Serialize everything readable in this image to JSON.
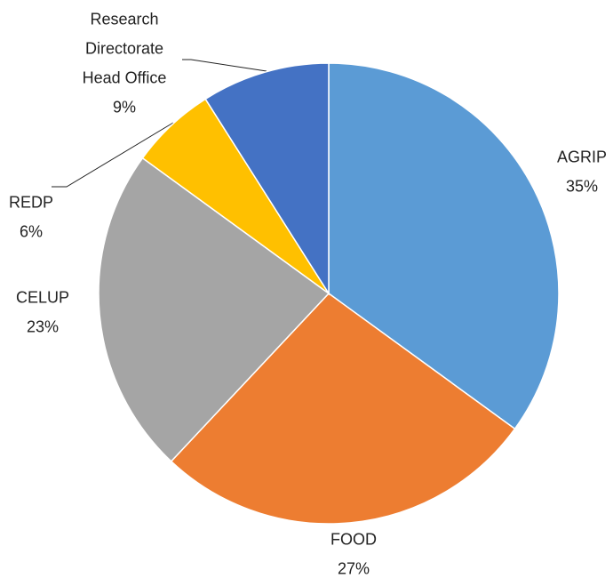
{
  "chart_data": {
    "type": "pie",
    "categories": [
      "AGRIP",
      "FOOD",
      "CELUP",
      "REDP",
      "Research Directorate Head Office"
    ],
    "values": [
      35,
      27,
      23,
      6,
      9
    ],
    "value_labels": [
      "35%",
      "27%",
      "23%",
      "6%",
      "9%"
    ],
    "colors": [
      "#5b9bd5",
      "#ed7d31",
      "#a5a5a5",
      "#ffc000",
      "#4472c4"
    ]
  }
}
